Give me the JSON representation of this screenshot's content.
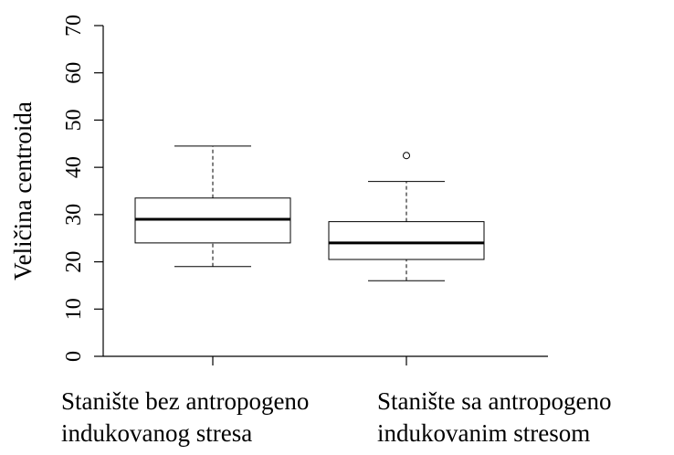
{
  "chart_data": {
    "type": "box",
    "ylabel": "Veličina centroida",
    "categories": [
      "Stanište bez antropogeno\nindukovanog stresa",
      "Stanište sa antropogeno\nindukovanim stresom"
    ],
    "boxes": [
      {
        "min": 19,
        "q1": 24,
        "median": 29,
        "q3": 33.5,
        "max": 44.5,
        "outliers": []
      },
      {
        "min": 16,
        "q1": 20.5,
        "median": 24,
        "q3": 28.5,
        "max": 37,
        "outliers": [
          42.5
        ]
      }
    ],
    "color": "#000000",
    "ylim": [
      0,
      70
    ],
    "yticks": [
      0,
      10,
      20,
      30,
      40,
      50,
      60,
      70
    ],
    "grid": false
  }
}
